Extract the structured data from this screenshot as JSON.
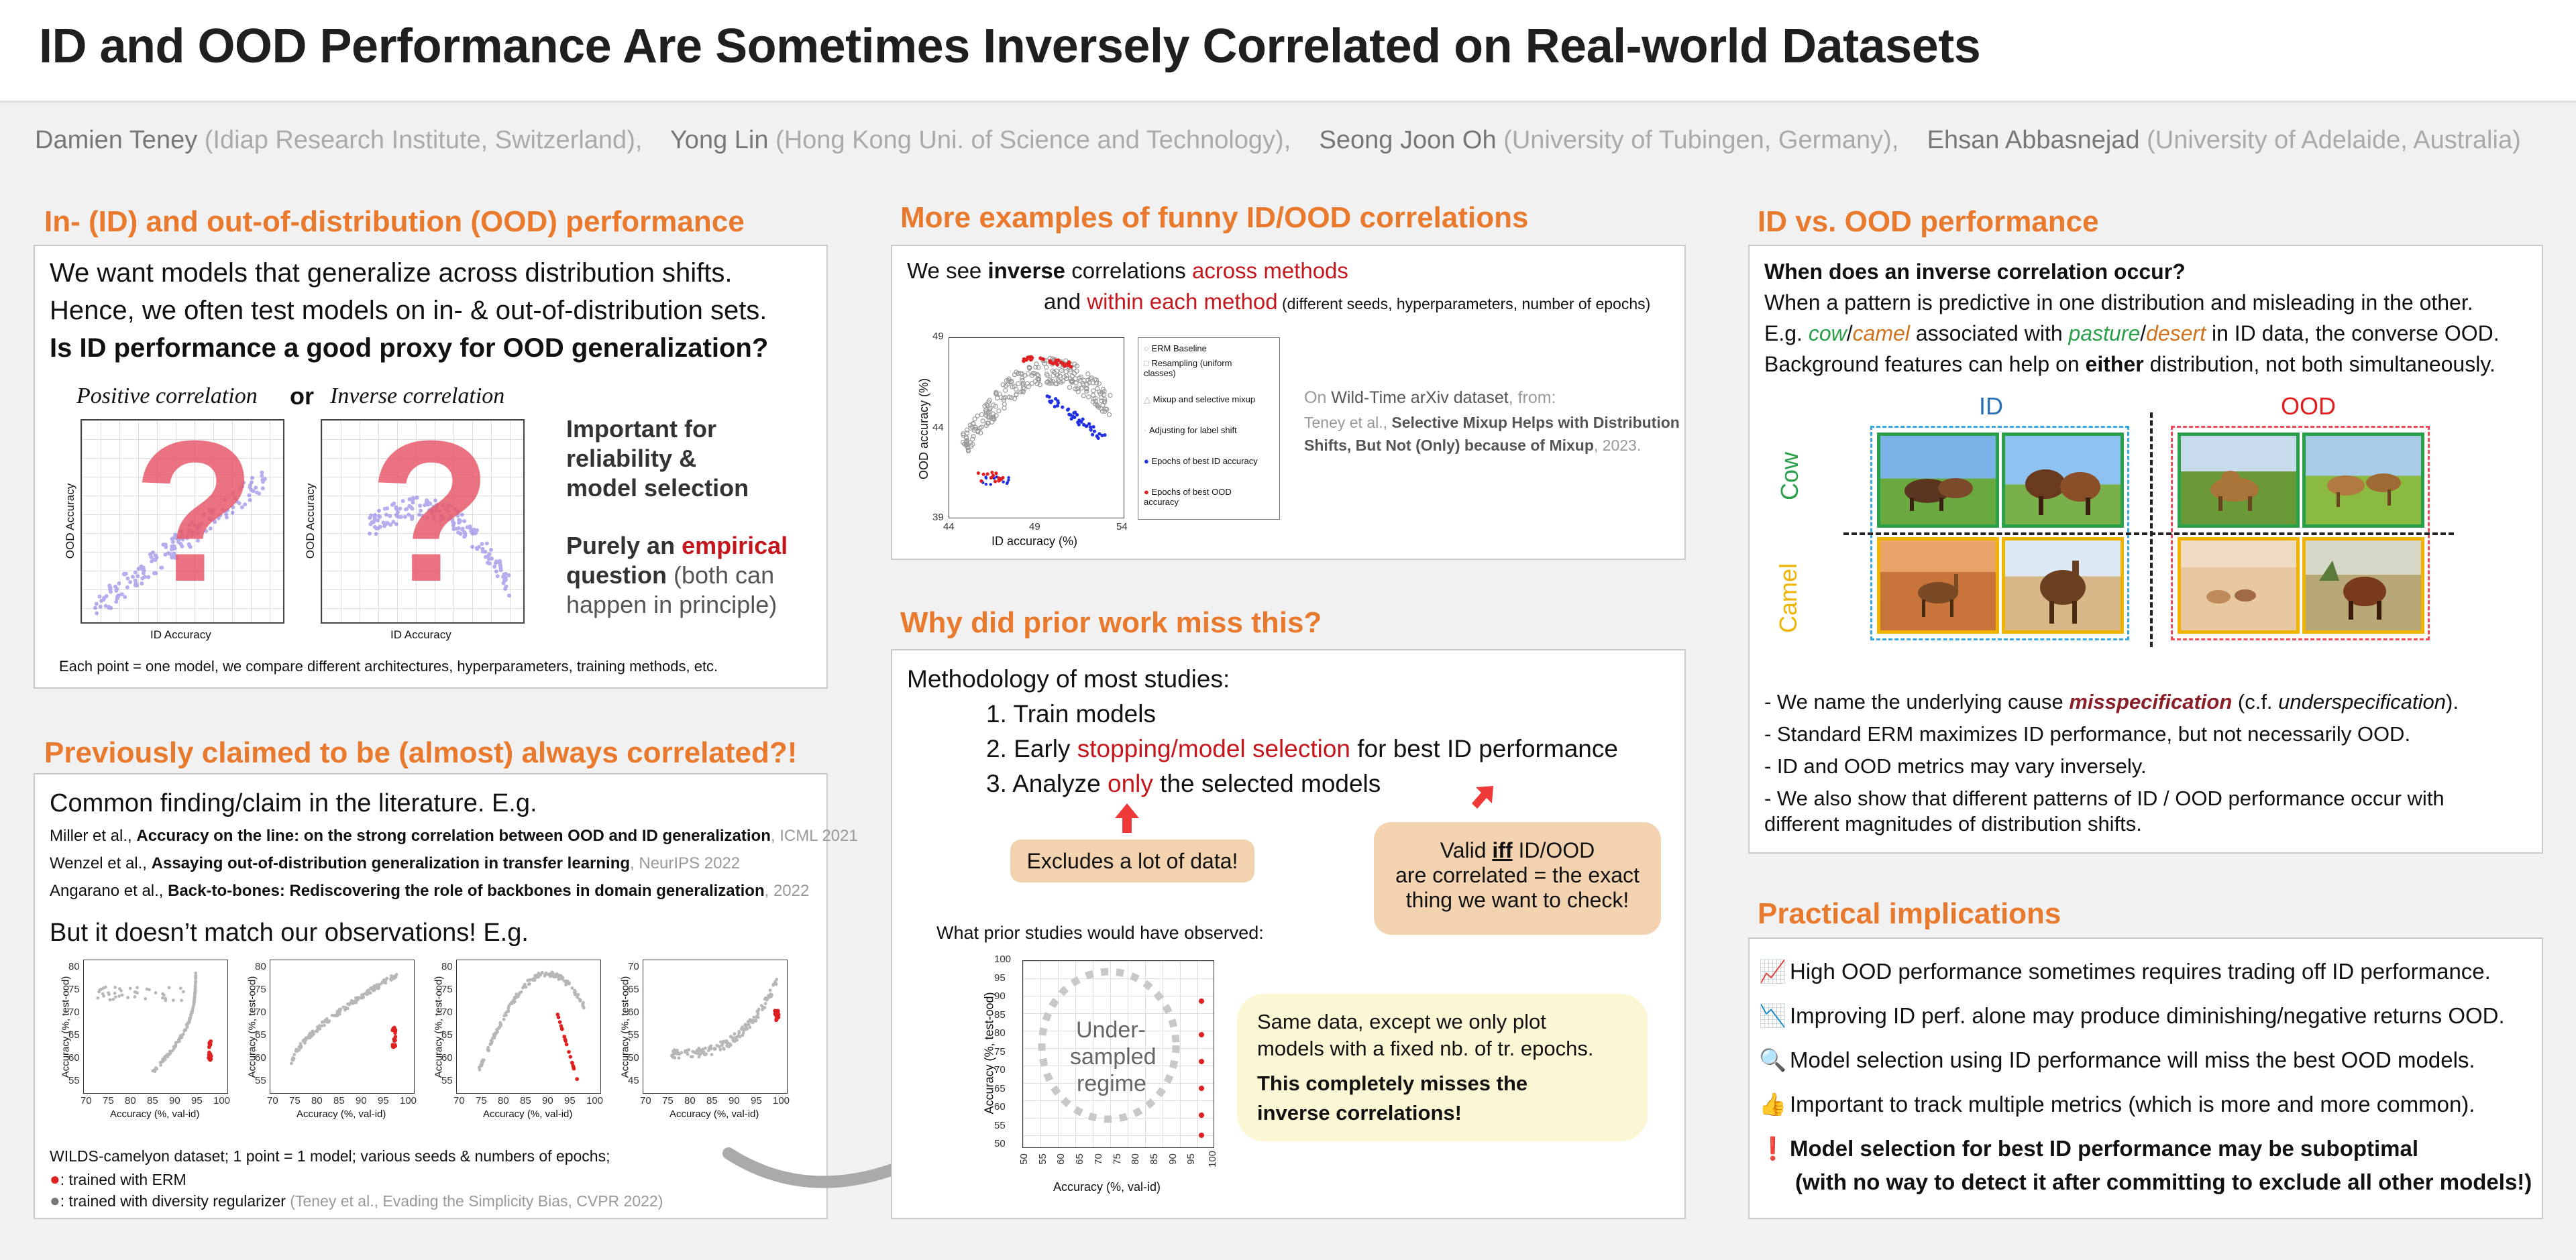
{
  "title": "ID and OOD Performance Are Sometimes Inversely Correlated on Real-world Datasets",
  "authors": [
    {
      "name": "Damien Teney",
      "affil": "(Idiap Research Institute, Switzerland),"
    },
    {
      "name": "Yong Lin",
      "affil": "(Hong Kong Uni. of Science and Technology),"
    },
    {
      "name": "Seong Joon Oh",
      "affil": "(University of Tubingen,  Germany),"
    },
    {
      "name": "Ehsan Abbasnejad",
      "affil": "(University of Adelaide, Australia)"
    }
  ],
  "s1": {
    "heading": "In- (ID) and out-of-distribution (OOD) performance",
    "line1": "We want models that generalize across distribution shifts.",
    "line2": "Hence, we often test models on in- & out-of-distribution sets.",
    "line3": "Is ID performance a good proxy for OOD generalization?",
    "pos_label": "Positive correlation",
    "or": "or",
    "inv_label": "Inverse correlation",
    "xlab": "ID Accuracy",
    "ylab": "OOD Accuracy",
    "qmark": "?",
    "imp1": "Important for",
    "imp2": "reliability &",
    "imp3": "model selection",
    "emp_a": "Purely an ",
    "emp_b": "empirical",
    "emp_c": "question",
    "emp_d": " (both can",
    "emp_e": "happen in principle)",
    "footnote": "Each point = one model,  we compare different architectures, hyperparameters, training methods, etc."
  },
  "s2": {
    "heading": "Previously claimed to be (almost) always correlated?!",
    "intro": "Common finding/claim in the literature. E.g.",
    "refs": [
      {
        "a": "Miller et al., ",
        "b": "Accuracy on the line: on the strong correlation between OOD and ID generalization",
        "c": ", ICML 2021"
      },
      {
        "a": "Wenzel et al., ",
        "b": "Assaying out-of-distribution generalization in transfer learning",
        "c": ", NeurIPS 2022"
      },
      {
        "a": "Angarano et al., ",
        "b": "Back-to-bones: Rediscovering the role of backbones in domain generalization",
        "c": ", 2022"
      }
    ],
    "but": "But it doesn’t match our observations!  E.g.",
    "xlab": "Accuracy (%, val-id)",
    "ylab": "Accuracy (%, test-ood)",
    "xticks": [
      "70",
      "75",
      "80",
      "85",
      "90",
      "95",
      "100"
    ],
    "yticks_a": [
      "80",
      "75",
      "70",
      "65",
      "60",
      "55"
    ],
    "yticks_b": [
      "80",
      "75",
      "70",
      "65",
      "60",
      "55"
    ],
    "yticks_c": [
      "80",
      "75",
      "70",
      "65",
      "60",
      "55"
    ],
    "yticks_d": [
      "70",
      "65",
      "60",
      "55",
      "50",
      "45"
    ],
    "cap1": "WILDS-camelyon dataset;  1 point = 1 model;  various seeds & numbers of epochs;",
    "cap2": ": trained with ERM",
    "cap3a": ": trained with diversity regularizer ",
    "cap3b": "(Teney et al., Evading the Simplicity Bias, CVPR 2022)"
  },
  "s3": {
    "heading": "More examples of funny ID/OOD correlations",
    "l1a": "We see ",
    "l1b": "inverse",
    "l1c": " correlations ",
    "l1d": "across methods",
    "l2a": "and ",
    "l2b": "within each method",
    "l2c": " (different seeds, hyperparameters, number of epochs)",
    "xlab": "ID accuracy (%)",
    "ylab": "OOD accuracy (%)",
    "xticks": [
      "44",
      "49",
      "54"
    ],
    "yticks": [
      "49",
      "44",
      "39"
    ],
    "legend": [
      "ERM Baseline",
      "Resampling (uniform classes)",
      "Mixup and selective mixup",
      "Adjusting for label shift",
      "Epochs of best ID accuracy",
      "Epochs of best OOD accuracy"
    ],
    "src_a": "On ",
    "src_b": "Wild-Time arXiv dataset",
    "src_c": ", from:",
    "src_d": "Teney et al., ",
    "src_e": "Selective Mixup Helps with Distribution",
    "src_f": "Shifts, But Not (Only) because of Mixup",
    "src_g": ", 2023."
  },
  "s4": {
    "heading": "Why did prior work miss this?",
    "method": "Methodology of most studies:",
    "step1": "1. Train models",
    "step2a": "2. Early ",
    "step2b": "stopping/model selection",
    "step2c": " for best ID performance",
    "step3a": "3. Analyze ",
    "step3b": "only",
    "step3c": " the selected models",
    "pill1": "Excludes a lot of data!",
    "pill2a": "Valid ",
    "pill2b": "iff",
    "pill2c": " ID/OOD",
    "pill2d": "are correlated = the exact",
    "pill2e": "thing we want to check!",
    "observed": "What prior studies would have observed:",
    "xlab": "Accuracy (%, val-id)",
    "ylab": "Accuracy (%, test-ood)",
    "xticks": [
      "50",
      "55",
      "60",
      "65",
      "70",
      "75",
      "80",
      "85",
      "90",
      "95",
      "100"
    ],
    "yticks": [
      "100",
      "95",
      "90",
      "85",
      "80",
      "75",
      "70",
      "65",
      "60",
      "55",
      "50"
    ],
    "under1": "Under-",
    "under2": "sampled",
    "under3": "regime",
    "note1": "Same data, except we only plot",
    "note2": "models with a fixed nb. of tr. epochs.",
    "note3": "This completely misses the",
    "note4": "inverse correlations!"
  },
  "s5": {
    "heading": "ID vs. OOD performance",
    "q": "When does an inverse correlation occur?",
    "l1": "When a pattern is predictive in one distribution and misleading in the other.",
    "l2a": "E.g. ",
    "l2b": "cow",
    "l2c": "/",
    "l2d": "camel",
    "l2e": " associated with ",
    "l2f": "pasture",
    "l2g": "/",
    "l2h": "desert",
    "l2i": " in ID data, the converse OOD.",
    "l3a": "Background features can help on ",
    "l3b": "either",
    "l3c": " distribution, not both simultaneously.",
    "id": "ID",
    "ood": "OOD",
    "cow": "Cow",
    "camel": "Camel",
    "b1a": "- We name the underlying cause ",
    "b1b": "misspecification",
    "b1c": "  (c.f. ",
    "b1d": "underspecification",
    "b1e": ").",
    "b2": "- Standard ERM maximizes ID performance,  but not necessarily OOD.",
    "b3": "- ID and OOD metrics may vary inversely.",
    "b4a": "- We also show that different patterns of ID / OOD performance occur with",
    "b4b": "different magnitudes of distribution shifts."
  },
  "s6": {
    "heading": "Practical implications",
    "items": [
      {
        "icon": "📈",
        "text": "High OOD performance sometimes requires trading off ID performance."
      },
      {
        "icon": "📉",
        "text": "Improving ID perf. alone may produce diminishing/negative returns OOD."
      },
      {
        "icon": "🔍",
        "text": "Model selection using ID performance will miss the best OOD models."
      },
      {
        "icon": "👍",
        "text": "Important to track multiple metrics (which is more and more common)."
      },
      {
        "icon": "❗",
        "text": "Model selection for best ID performance may be suboptimal"
      }
    ],
    "last2": "(with no way to detect it after committing to exclude all other models!)"
  },
  "colors": {
    "accent": "#e8792d",
    "red": "#c4161c",
    "cow": "#2aa04a",
    "camel": "#f0b400"
  }
}
